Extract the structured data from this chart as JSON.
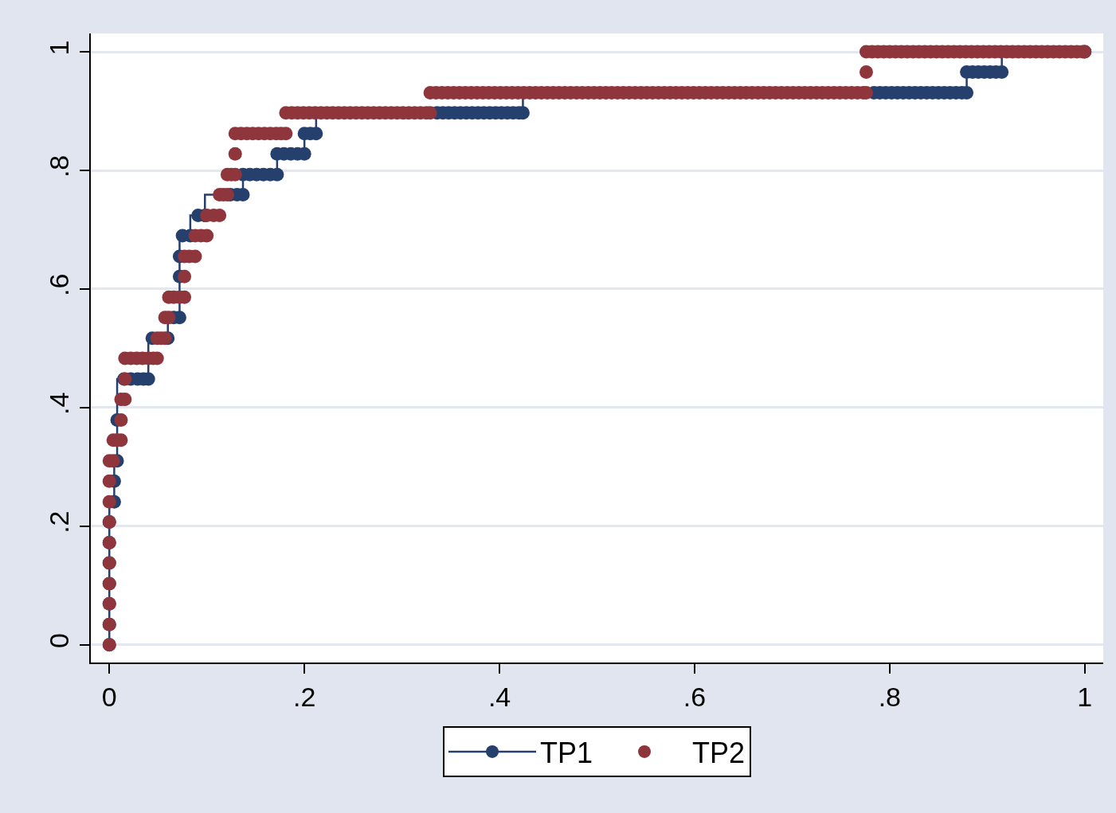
{
  "chart_data": {
    "type": "step",
    "xlim": [
      -0.019,
      1.019
    ],
    "ylim": [
      -0.03,
      1.031
    ],
    "xticks": [
      0,
      {
        "value": 0.2,
        "label": ".2"
      },
      {
        "value": 0.4,
        "label": ".4"
      },
      {
        "value": 0.6,
        "label": ".6"
      },
      {
        "value": 0.8,
        "label": ".8"
      },
      1
    ],
    "yticks": [
      0,
      {
        "value": 0.2,
        "label": ".2"
      },
      {
        "value": 0.4,
        "label": ".4"
      },
      {
        "value": 0.6,
        "label": ".6"
      },
      {
        "value": 0.8,
        "label": ".8"
      },
      1
    ],
    "grid": "y",
    "legend": "bottom",
    "marker": "circle",
    "series": [
      {
        "name": "TP1",
        "color": "#26406e",
        "x": [
          0,
          0,
          0,
          0,
          0,
          0,
          0,
          0.005,
          0.005,
          0.008,
          0.008,
          0.015,
          0.022,
          0.029,
          0.035,
          0.04,
          0.044,
          0.06,
          0.066,
          0.072,
          0.072,
          0.072,
          0.075,
          0.083,
          0.091,
          0.098,
          0.124,
          0.131,
          0.137,
          0.137,
          0.144,
          0.151,
          0.158,
          0.165,
          0.172,
          0.172,
          0.179,
          0.186,
          0.193,
          0.2,
          0.2,
          0.206,
          0.212,
          0.336,
          0.342,
          0.348,
          0.354,
          0.36,
          0.366,
          0.372,
          0.378,
          0.384,
          0.39,
          0.396,
          0.402,
          0.408,
          0.414,
          0.42,
          0.424,
          0.784,
          0.79,
          0.796,
          0.802,
          0.808,
          0.814,
          0.82,
          0.826,
          0.832,
          0.838,
          0.844,
          0.85,
          0.856,
          0.862,
          0.868,
          0.874,
          0.879,
          0.879,
          0.885,
          0.891,
          0.897,
          0.903,
          0.909,
          0.915,
          1
        ],
        "values": [
          0,
          0.034,
          0.069,
          0.103,
          0.138,
          0.172,
          0.207,
          0.241,
          0.276,
          0.31,
          0.379,
          0.448,
          0.448,
          0.448,
          0.448,
          0.448,
          0.517,
          0.517,
          0.552,
          0.552,
          0.621,
          0.655,
          0.69,
          0.69,
          0.724,
          0.724,
          0.759,
          0.759,
          0.759,
          0.793,
          0.793,
          0.793,
          0.793,
          0.793,
          0.793,
          0.828,
          0.828,
          0.828,
          0.828,
          0.828,
          0.862,
          0.862,
          0.862,
          0.897,
          0.897,
          0.897,
          0.897,
          0.897,
          0.897,
          0.897,
          0.897,
          0.897,
          0.897,
          0.897,
          0.897,
          0.897,
          0.897,
          0.897,
          0.897,
          0.931,
          0.931,
          0.931,
          0.931,
          0.931,
          0.931,
          0.931,
          0.931,
          0.931,
          0.931,
          0.931,
          0.931,
          0.931,
          0.931,
          0.931,
          0.931,
          0.931,
          0.966,
          0.966,
          0.966,
          0.966,
          0.966,
          0.966,
          0.966,
          1
        ]
      },
      {
        "name": "TP2",
        "type": "scatter",
        "color": "#8f353c",
        "x": [
          0,
          0,
          0,
          0,
          0,
          0,
          0,
          0,
          0,
          0,
          0.004,
          0.004,
          0.008,
          0.012,
          0.012,
          0.012,
          0.016,
          0.016,
          0.016,
          0.022,
          0.028,
          0.034,
          0.04,
          0.045,
          0.049,
          0.049,
          0.053,
          0.057,
          0.057,
          0.061,
          0.061,
          0.066,
          0.072,
          0.077,
          0.077,
          0.077,
          0.082,
          0.088,
          0.088,
          0.094,
          0.1,
          0.1,
          0.107,
          0.113,
          0.113,
          0.117,
          0.121,
          0.121,
          0.125,
          0.129,
          0.129,
          0.129,
          0.135,
          0.141,
          0.147,
          0.153,
          0.159,
          0.165,
          0.171,
          0.176,
          0.181,
          0.181,
          0.187,
          0.193,
          0.199,
          0.205,
          0.211,
          0.217,
          0.223,
          0.229,
          0.235,
          0.241,
          0.247,
          0.253,
          0.259,
          0.265,
          0.271,
          0.277,
          0.283,
          0.289,
          0.295,
          0.301,
          0.307,
          0.313,
          0.319,
          0.325,
          0.329,
          0.329,
          0.335,
          0.341,
          0.347,
          0.353,
          0.359,
          0.365,
          0.371,
          0.377,
          0.383,
          0.389,
          0.395,
          0.401,
          0.407,
          0.413,
          0.419,
          0.425,
          0.431,
          0.437,
          0.443,
          0.449,
          0.455,
          0.461,
          0.467,
          0.473,
          0.479,
          0.485,
          0.491,
          0.497,
          0.503,
          0.509,
          0.515,
          0.521,
          0.527,
          0.533,
          0.539,
          0.545,
          0.551,
          0.557,
          0.563,
          0.569,
          0.575,
          0.581,
          0.587,
          0.593,
          0.599,
          0.605,
          0.611,
          0.617,
          0.623,
          0.629,
          0.635,
          0.641,
          0.647,
          0.653,
          0.659,
          0.665,
          0.671,
          0.677,
          0.683,
          0.689,
          0.695,
          0.701,
          0.707,
          0.713,
          0.719,
          0.725,
          0.731,
          0.737,
          0.743,
          0.749,
          0.755,
          0.761,
          0.767,
          0.773,
          0.776,
          0.776,
          0.776,
          0.782,
          0.788,
          0.794,
          0.8,
          0.806,
          0.812,
          0.818,
          0.824,
          0.83,
          0.836,
          0.842,
          0.848,
          0.854,
          0.86,
          0.866,
          0.872,
          0.878,
          0.884,
          0.89,
          0.896,
          0.902,
          0.908,
          0.914,
          0.92,
          0.926,
          0.932,
          0.938,
          0.944,
          0.95,
          0.956,
          0.962,
          0.968,
          0.974,
          0.98,
          0.986,
          0.992,
          0.998,
          1
        ],
        "values": [
          0,
          0.034,
          0.069,
          0.103,
          0.138,
          0.172,
          0.207,
          0.241,
          0.276,
          0.31,
          0.31,
          0.345,
          0.345,
          0.345,
          0.379,
          0.414,
          0.414,
          0.448,
          0.483,
          0.483,
          0.483,
          0.483,
          0.483,
          0.483,
          0.483,
          0.517,
          0.517,
          0.517,
          0.552,
          0.552,
          0.586,
          0.586,
          0.586,
          0.586,
          0.621,
          0.655,
          0.655,
          0.655,
          0.69,
          0.69,
          0.69,
          0.724,
          0.724,
          0.724,
          0.759,
          0.759,
          0.759,
          0.793,
          0.793,
          0.793,
          0.828,
          0.862,
          0.862,
          0.862,
          0.862,
          0.862,
          0.862,
          0.862,
          0.862,
          0.862,
          0.862,
          0.897,
          0.897,
          0.897,
          0.897,
          0.897,
          0.897,
          0.897,
          0.897,
          0.897,
          0.897,
          0.897,
          0.897,
          0.897,
          0.897,
          0.897,
          0.897,
          0.897,
          0.897,
          0.897,
          0.897,
          0.897,
          0.897,
          0.897,
          0.897,
          0.897,
          0.897,
          0.931,
          0.931,
          0.931,
          0.931,
          0.931,
          0.931,
          0.931,
          0.931,
          0.931,
          0.931,
          0.931,
          0.931,
          0.931,
          0.931,
          0.931,
          0.931,
          0.931,
          0.931,
          0.931,
          0.931,
          0.931,
          0.931,
          0.931,
          0.931,
          0.931,
          0.931,
          0.931,
          0.931,
          0.931,
          0.931,
          0.931,
          0.931,
          0.931,
          0.931,
          0.931,
          0.931,
          0.931,
          0.931,
          0.931,
          0.931,
          0.931,
          0.931,
          0.931,
          0.931,
          0.931,
          0.931,
          0.931,
          0.931,
          0.931,
          0.931,
          0.931,
          0.931,
          0.931,
          0.931,
          0.931,
          0.931,
          0.931,
          0.931,
          0.931,
          0.931,
          0.931,
          0.931,
          0.931,
          0.931,
          0.931,
          0.931,
          0.931,
          0.931,
          0.931,
          0.931,
          0.931,
          0.931,
          0.931,
          0.931,
          0.931,
          0.931,
          0.966,
          1,
          1,
          1,
          1,
          1,
          1,
          1,
          1,
          1,
          1,
          1,
          1,
          1,
          1,
          1,
          1,
          1,
          1,
          1,
          1,
          1,
          1,
          1,
          1,
          1,
          1,
          1,
          1,
          1,
          1,
          1,
          1,
          1,
          1,
          1,
          1,
          1,
          1,
          1
        ]
      }
    ]
  }
}
